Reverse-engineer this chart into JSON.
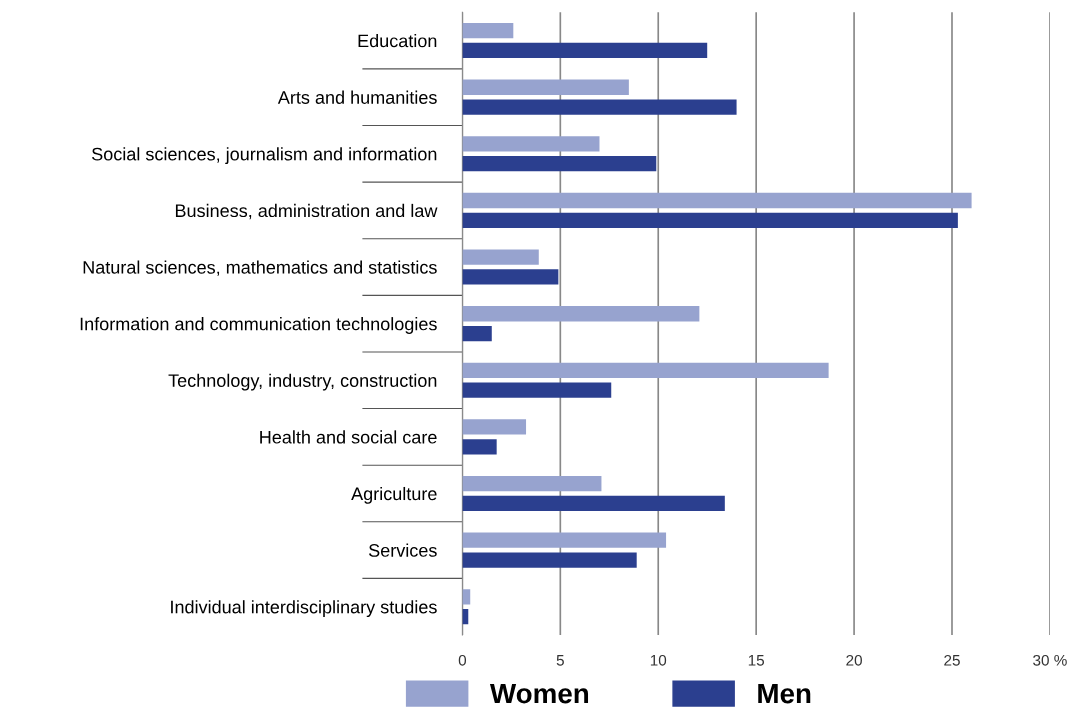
{
  "chart_data": {
    "type": "bar",
    "orientation": "horizontal",
    "categories": [
      "Education",
      "Arts and humanities",
      "Social sciences, journalism and information",
      "Business, administration and law",
      "Natural sciences, mathematics and statistics",
      "Information and communication technologies",
      "Technology, industry, construction",
      "Health and social care",
      "Agriculture",
      "Services",
      "Individual interdisciplinary studies"
    ],
    "series": [
      {
        "name": "Women",
        "color": "#97a3cf",
        "values": [
          2.6,
          8.5,
          7.0,
          26.0,
          3.9,
          12.1,
          18.7,
          3.25,
          7.1,
          10.4,
          0.4
        ]
      },
      {
        "name": "Men",
        "color": "#2b3f8f",
        "values": [
          12.5,
          14.0,
          9.9,
          25.3,
          4.9,
          1.5,
          7.6,
          1.75,
          13.4,
          8.9,
          0.3
        ]
      }
    ],
    "xlim": [
      0,
      30
    ],
    "xticks": [
      0,
      5,
      10,
      15,
      20,
      25,
      {
        "value": 30,
        "label": "30 %"
      }
    ],
    "grid": "x",
    "legend": "bottom"
  }
}
